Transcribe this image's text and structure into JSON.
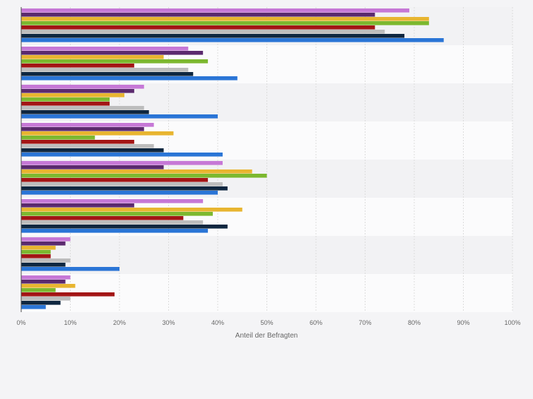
{
  "chart_data": {
    "type": "bar",
    "orientation": "horizontal",
    "title": "",
    "xlabel": "Anteil der Befragten",
    "ylabel": "",
    "xlim": [
      0,
      100
    ],
    "x_ticks": [
      "0%",
      "10%",
      "20%",
      "30%",
      "40%",
      "50%",
      "60%",
      "70%",
      "80%",
      "90%",
      "100%"
    ],
    "grid": true,
    "legend": "none",
    "categories": [
      "",
      "",
      "",
      "",
      "",
      "",
      "",
      ""
    ],
    "series": [
      {
        "color": "#c678d6",
        "values": [
          79,
          34,
          25,
          27,
          41,
          37,
          10,
          10
        ]
      },
      {
        "color": "#5b2a6e",
        "values": [
          72,
          37,
          23,
          25,
          29,
          23,
          9,
          9
        ]
      },
      {
        "color": "#e8b530",
        "values": [
          83,
          29,
          21,
          31,
          47,
          45,
          7,
          11
        ]
      },
      {
        "color": "#7cb82f",
        "values": [
          83,
          38,
          18,
          15,
          50,
          39,
          6,
          7
        ]
      },
      {
        "color": "#a31515",
        "values": [
          72,
          23,
          18,
          23,
          38,
          33,
          6,
          19
        ]
      },
      {
        "color": "#bdbdbd",
        "values": [
          74,
          34,
          25,
          27,
          41,
          37,
          10,
          10
        ]
      },
      {
        "color": "#0f2740",
        "values": [
          78,
          35,
          26,
          29,
          42,
          42,
          9,
          8
        ]
      },
      {
        "color": "#2a75d6",
        "values": [
          86,
          44,
          40,
          41,
          40,
          38,
          20,
          5
        ]
      }
    ]
  }
}
